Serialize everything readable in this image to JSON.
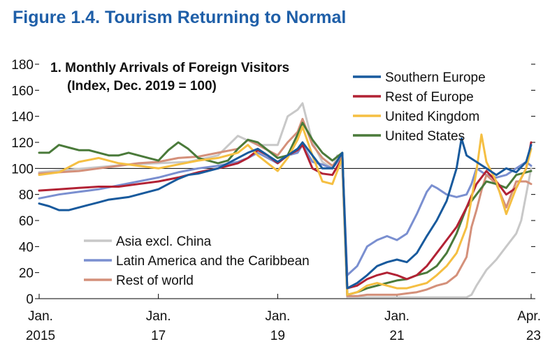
{
  "figure_title": "Figure 1.4.  Tourism Returning to Normal",
  "chart_data": {
    "type": "line",
    "title": "1. Monthly Arrivals of Foreign Visitors",
    "subtitle": "(Index, Dec. 2019 = 100)",
    "xlabel": "",
    "ylabel": "",
    "ylim": [
      0,
      180
    ],
    "yticks": [
      0,
      20,
      40,
      60,
      80,
      100,
      120,
      140,
      160,
      180
    ],
    "xlim": [
      0,
      99
    ],
    "x_unit": "months since Jan. 2015",
    "x_ticks": [
      {
        "m": 0,
        "line1": "Jan.",
        "line2": "2015"
      },
      {
        "m": 24,
        "line1": "Jan.",
        "line2": "17"
      },
      {
        "m": 48,
        "line1": "Jan.",
        "line2": "19"
      },
      {
        "m": 72,
        "line1": "Jan.",
        "line2": "21"
      },
      {
        "m": 99,
        "line1": "Apr.",
        "line2": "23"
      }
    ],
    "reference_line": 100,
    "legend_top": [
      "Southern Europe",
      "Rest of Europe",
      "United Kingdom",
      "United States"
    ],
    "legend_bottom": [
      "Asia excl. China",
      "Latin America and the Caribbean",
      "Rest of world"
    ],
    "series": [
      {
        "name": "Asia excl. China",
        "color": "#c8c8c8",
        "points": [
          [
            0,
            97
          ],
          [
            6,
            99
          ],
          [
            12,
            101
          ],
          [
            18,
            103
          ],
          [
            24,
            104
          ],
          [
            30,
            105
          ],
          [
            36,
            110
          ],
          [
            40,
            125
          ],
          [
            44,
            118
          ],
          [
            48,
            118
          ],
          [
            50,
            140
          ],
          [
            52,
            145
          ],
          [
            53,
            150
          ],
          [
            55,
            120
          ],
          [
            57,
            105
          ],
          [
            59,
            100
          ],
          [
            60,
            110
          ],
          [
            61,
            100
          ],
          [
            62,
            1
          ],
          [
            66,
            1
          ],
          [
            70,
            1
          ],
          [
            72,
            1
          ],
          [
            76,
            1
          ],
          [
            80,
            1
          ],
          [
            84,
            1
          ],
          [
            86,
            1
          ],
          [
            87,
            3
          ],
          [
            88,
            10
          ],
          [
            90,
            22
          ],
          [
            92,
            30
          ],
          [
            94,
            40
          ],
          [
            96,
            50
          ],
          [
            97,
            60
          ],
          [
            98,
            80
          ],
          [
            99,
            100
          ]
        ]
      },
      {
        "name": "Latin America and the Caribbean",
        "color": "#7a8fd0",
        "points": [
          [
            0,
            77
          ],
          [
            4,
            80
          ],
          [
            8,
            82
          ],
          [
            12,
            84
          ],
          [
            16,
            87
          ],
          [
            20,
            90
          ],
          [
            24,
            93
          ],
          [
            28,
            97
          ],
          [
            32,
            100
          ],
          [
            36,
            102
          ],
          [
            40,
            105
          ],
          [
            42,
            108
          ],
          [
            44,
            112
          ],
          [
            46,
            108
          ],
          [
            48,
            104
          ],
          [
            50,
            110
          ],
          [
            52,
            112
          ],
          [
            53,
            118
          ],
          [
            55,
            105
          ],
          [
            57,
            103
          ],
          [
            59,
            100
          ],
          [
            61,
            110
          ],
          [
            62,
            18
          ],
          [
            64,
            25
          ],
          [
            66,
            40
          ],
          [
            68,
            45
          ],
          [
            70,
            48
          ],
          [
            72,
            45
          ],
          [
            74,
            50
          ],
          [
            76,
            65
          ],
          [
            78,
            82
          ],
          [
            79,
            87
          ],
          [
            80,
            85
          ],
          [
            82,
            80
          ],
          [
            84,
            78
          ],
          [
            86,
            80
          ],
          [
            87,
            88
          ],
          [
            88,
            100
          ],
          [
            90,
            95
          ],
          [
            92,
            93
          ],
          [
            94,
            95
          ],
          [
            96,
            100
          ],
          [
            98,
            105
          ],
          [
            99,
            102
          ]
        ]
      },
      {
        "name": "Rest of world",
        "color": "#d4907a",
        "points": [
          [
            0,
            96
          ],
          [
            4,
            97
          ],
          [
            8,
            98
          ],
          [
            12,
            100
          ],
          [
            16,
            102
          ],
          [
            20,
            104
          ],
          [
            24,
            105
          ],
          [
            28,
            108
          ],
          [
            32,
            109
          ],
          [
            36,
            112
          ],
          [
            40,
            115
          ],
          [
            42,
            122
          ],
          [
            44,
            118
          ],
          [
            46,
            114
          ],
          [
            48,
            110
          ],
          [
            50,
            120
          ],
          [
            52,
            128
          ],
          [
            53,
            138
          ],
          [
            55,
            118
          ],
          [
            57,
            108
          ],
          [
            59,
            102
          ],
          [
            61,
            110
          ],
          [
            62,
            2
          ],
          [
            64,
            2
          ],
          [
            66,
            3
          ],
          [
            68,
            3
          ],
          [
            70,
            3
          ],
          [
            72,
            3
          ],
          [
            74,
            4
          ],
          [
            76,
            5
          ],
          [
            78,
            7
          ],
          [
            80,
            10
          ],
          [
            82,
            12
          ],
          [
            84,
            18
          ],
          [
            86,
            32
          ],
          [
            87,
            55
          ],
          [
            88,
            68
          ],
          [
            89,
            83
          ],
          [
            90,
            95
          ],
          [
            92,
            88
          ],
          [
            94,
            70
          ],
          [
            96,
            90
          ],
          [
            98,
            90
          ],
          [
            99,
            88
          ]
        ]
      },
      {
        "name": "United States",
        "color": "#4a7a3a",
        "points": [
          [
            0,
            112
          ],
          [
            2,
            112
          ],
          [
            4,
            118
          ],
          [
            6,
            116
          ],
          [
            8,
            114
          ],
          [
            10,
            114
          ],
          [
            12,
            112
          ],
          [
            14,
            110
          ],
          [
            16,
            110
          ],
          [
            18,
            112
          ],
          [
            20,
            110
          ],
          [
            22,
            108
          ],
          [
            24,
            106
          ],
          [
            26,
            114
          ],
          [
            28,
            120
          ],
          [
            30,
            115
          ],
          [
            32,
            108
          ],
          [
            34,
            106
          ],
          [
            36,
            104
          ],
          [
            38,
            106
          ],
          [
            40,
            115
          ],
          [
            42,
            122
          ],
          [
            44,
            120
          ],
          [
            46,
            114
          ],
          [
            48,
            108
          ],
          [
            50,
            110
          ],
          [
            52,
            126
          ],
          [
            53,
            135
          ],
          [
            55,
            122
          ],
          [
            57,
            112
          ],
          [
            59,
            106
          ],
          [
            61,
            112
          ],
          [
            62,
            3
          ],
          [
            64,
            5
          ],
          [
            66,
            8
          ],
          [
            68,
            10
          ],
          [
            70,
            12
          ],
          [
            72,
            14
          ],
          [
            74,
            15
          ],
          [
            76,
            18
          ],
          [
            78,
            20
          ],
          [
            80,
            25
          ],
          [
            82,
            35
          ],
          [
            84,
            50
          ],
          [
            86,
            70
          ],
          [
            88,
            80
          ],
          [
            90,
            90
          ],
          [
            92,
            88
          ],
          [
            94,
            85
          ],
          [
            96,
            95
          ],
          [
            98,
            97
          ],
          [
            99,
            98
          ]
        ]
      },
      {
        "name": "Rest of Europe",
        "color": "#b22234",
        "points": [
          [
            0,
            83
          ],
          [
            4,
            84
          ],
          [
            8,
            85
          ],
          [
            12,
            86
          ],
          [
            16,
            86
          ],
          [
            20,
            88
          ],
          [
            24,
            90
          ],
          [
            28,
            93
          ],
          [
            32,
            97
          ],
          [
            36,
            100
          ],
          [
            40,
            104
          ],
          [
            42,
            108
          ],
          [
            44,
            114
          ],
          [
            46,
            110
          ],
          [
            48,
            104
          ],
          [
            50,
            110
          ],
          [
            52,
            114
          ],
          [
            53,
            118
          ],
          [
            55,
            100
          ],
          [
            57,
            96
          ],
          [
            59,
            95
          ],
          [
            61,
            108
          ],
          [
            62,
            8
          ],
          [
            64,
            10
          ],
          [
            66,
            15
          ],
          [
            68,
            18
          ],
          [
            70,
            20
          ],
          [
            72,
            18
          ],
          [
            74,
            15
          ],
          [
            76,
            18
          ],
          [
            78,
            25
          ],
          [
            80,
            35
          ],
          [
            82,
            45
          ],
          [
            84,
            55
          ],
          [
            86,
            70
          ],
          [
            88,
            88
          ],
          [
            90,
            98
          ],
          [
            92,
            90
          ],
          [
            94,
            80
          ],
          [
            96,
            85
          ],
          [
            98,
            100
          ],
          [
            99,
            120
          ]
        ]
      },
      {
        "name": "United Kingdom",
        "color": "#f5bf42",
        "points": [
          [
            0,
            95
          ],
          [
            4,
            97
          ],
          [
            8,
            105
          ],
          [
            12,
            108
          ],
          [
            16,
            104
          ],
          [
            20,
            102
          ],
          [
            24,
            100
          ],
          [
            28,
            103
          ],
          [
            32,
            106
          ],
          [
            36,
            108
          ],
          [
            40,
            112
          ],
          [
            42,
            118
          ],
          [
            44,
            110
          ],
          [
            46,
            104
          ],
          [
            48,
            98
          ],
          [
            50,
            108
          ],
          [
            52,
            122
          ],
          [
            53,
            132
          ],
          [
            55,
            110
          ],
          [
            57,
            90
          ],
          [
            59,
            88
          ],
          [
            61,
            108
          ],
          [
            62,
            3
          ],
          [
            64,
            5
          ],
          [
            66,
            10
          ],
          [
            68,
            12
          ],
          [
            70,
            10
          ],
          [
            72,
            8
          ],
          [
            74,
            8
          ],
          [
            76,
            10
          ],
          [
            78,
            12
          ],
          [
            80,
            18
          ],
          [
            82,
            25
          ],
          [
            84,
            35
          ],
          [
            86,
            55
          ],
          [
            88,
            98
          ],
          [
            89,
            126
          ],
          [
            90,
            105
          ],
          [
            92,
            90
          ],
          [
            94,
            65
          ],
          [
            96,
            85
          ],
          [
            98,
            100
          ],
          [
            99,
            115
          ]
        ]
      },
      {
        "name": "Southern Europe",
        "color": "#185a9d",
        "points": [
          [
            0,
            73
          ],
          [
            2,
            71
          ],
          [
            4,
            68
          ],
          [
            6,
            68
          ],
          [
            8,
            70
          ],
          [
            10,
            72
          ],
          [
            12,
            74
          ],
          [
            14,
            76
          ],
          [
            16,
            77
          ],
          [
            18,
            78
          ],
          [
            20,
            80
          ],
          [
            22,
            82
          ],
          [
            24,
            84
          ],
          [
            26,
            88
          ],
          [
            28,
            92
          ],
          [
            30,
            95
          ],
          [
            32,
            96
          ],
          [
            34,
            98
          ],
          [
            36,
            100
          ],
          [
            38,
            104
          ],
          [
            40,
            108
          ],
          [
            42,
            112
          ],
          [
            44,
            115
          ],
          [
            46,
            110
          ],
          [
            48,
            105
          ],
          [
            50,
            110
          ],
          [
            52,
            115
          ],
          [
            53,
            120
          ],
          [
            55,
            110
          ],
          [
            57,
            100
          ],
          [
            59,
            100
          ],
          [
            61,
            112
          ],
          [
            62,
            8
          ],
          [
            64,
            12
          ],
          [
            66,
            18
          ],
          [
            68,
            25
          ],
          [
            70,
            28
          ],
          [
            72,
            30
          ],
          [
            74,
            28
          ],
          [
            76,
            35
          ],
          [
            78,
            48
          ],
          [
            80,
            60
          ],
          [
            82,
            75
          ],
          [
            84,
            100
          ],
          [
            85,
            123
          ],
          [
            86,
            110
          ],
          [
            88,
            105
          ],
          [
            90,
            100
          ],
          [
            92,
            95
          ],
          [
            94,
            100
          ],
          [
            96,
            97
          ],
          [
            98,
            105
          ],
          [
            99,
            118
          ]
        ]
      }
    ]
  }
}
